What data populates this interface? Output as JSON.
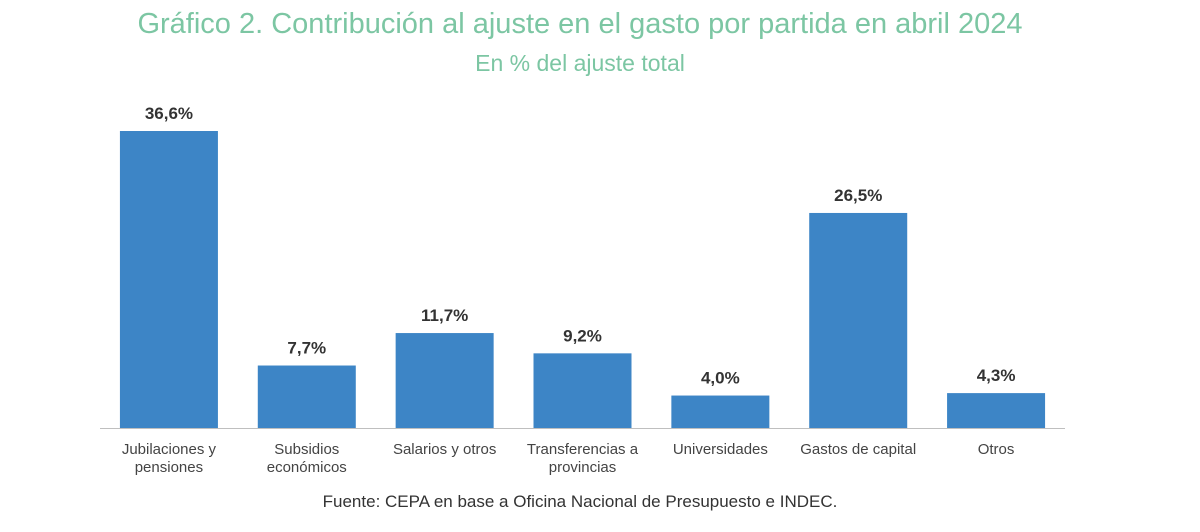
{
  "title": "Gráfico 2. Contribución al ajuste en el gasto por partida en abril 2024",
  "subtitle": "En % del ajuste total",
  "source": "Fuente: CEPA en base a Oficina Nacional de Presupuesto e INDEC.",
  "colors": {
    "title": "#7cc6a3",
    "bar": "#3d85c6",
    "axis": "#bfbfbf",
    "text": "#333333"
  },
  "chart_data": {
    "type": "bar",
    "categories": [
      [
        "Jubilaciones y",
        "pensiones"
      ],
      [
        "Subsidios",
        "económicos"
      ],
      [
        "Salarios y otros"
      ],
      [
        "Transferencias a",
        "provincias"
      ],
      [
        "Universidades"
      ],
      [
        "Gastos de capital"
      ],
      [
        "Otros"
      ]
    ],
    "values": [
      36.6,
      7.7,
      11.7,
      9.2,
      4.0,
      26.5,
      4.3
    ],
    "value_labels": [
      "36,6%",
      "7,7%",
      "11,7%",
      "9,2%",
      "4,0%",
      "26,5%",
      "4,3%"
    ],
    "ylim": [
      0,
      36.6
    ],
    "grid": false,
    "legend": "none"
  }
}
